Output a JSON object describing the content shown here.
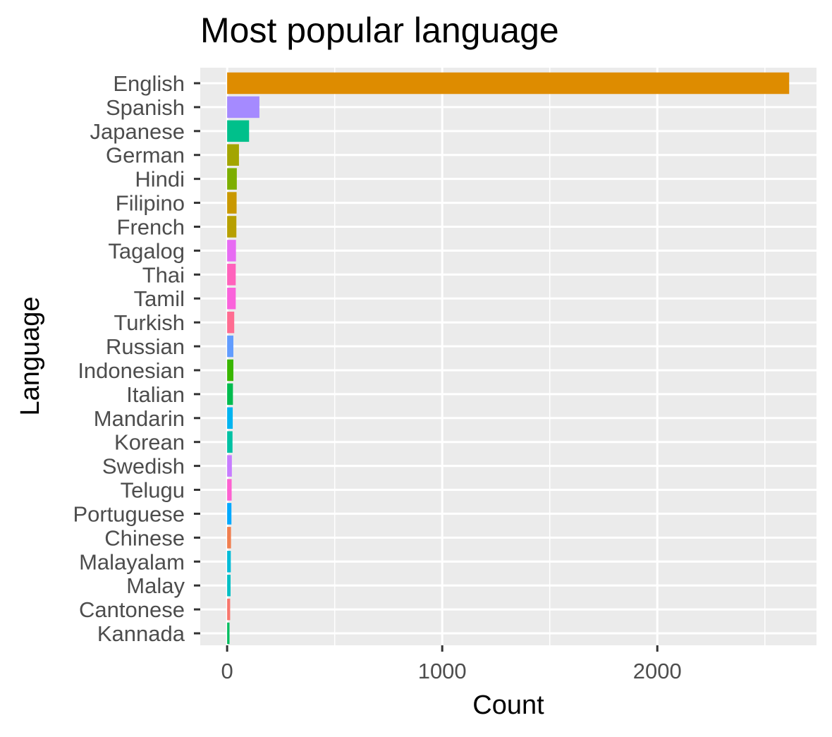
{
  "chart_data": {
    "type": "bar",
    "orientation": "horizontal",
    "title": "Most popular language",
    "xlabel": "Count",
    "ylabel": "Language",
    "xlim": [
      -125,
      2740
    ],
    "x_ticks": [
      0,
      1000,
      2000
    ],
    "grid": true,
    "legend": "none",
    "categories": [
      "English",
      "Spanish",
      "Japanese",
      "German",
      "Hindi",
      "Filipino",
      "French",
      "Tagalog",
      "Thai",
      "Tamil",
      "Turkish",
      "Russian",
      "Indonesian",
      "Italian",
      "Mandarin",
      "Korean",
      "Swedish",
      "Telugu",
      "Portuguese",
      "Chinese",
      "Malayalam",
      "Malay",
      "Cantonese",
      "Kannada"
    ],
    "values": [
      2613,
      150,
      102,
      55,
      45,
      44,
      43,
      41,
      40,
      40,
      33,
      29,
      29,
      27,
      26,
      25,
      22,
      21,
      20,
      18,
      17,
      16,
      14,
      11
    ],
    "colors": [
      "#DE8C00",
      "#A58AFF",
      "#00C08B",
      "#A3A500",
      "#7CAE00",
      "#C99800",
      "#B79F00",
      "#E76BF3",
      "#FF62BC",
      "#FA62DB",
      "#FF6C91",
      "#619CFF",
      "#39B600",
      "#00BB4E",
      "#00B4F0",
      "#00C1A3",
      "#C77CFF",
      "#FD61D1",
      "#00A9FF",
      "#F07E4E",
      "#00BCD8",
      "#00BFC4",
      "#F8766D",
      "#00BD5F"
    ]
  }
}
